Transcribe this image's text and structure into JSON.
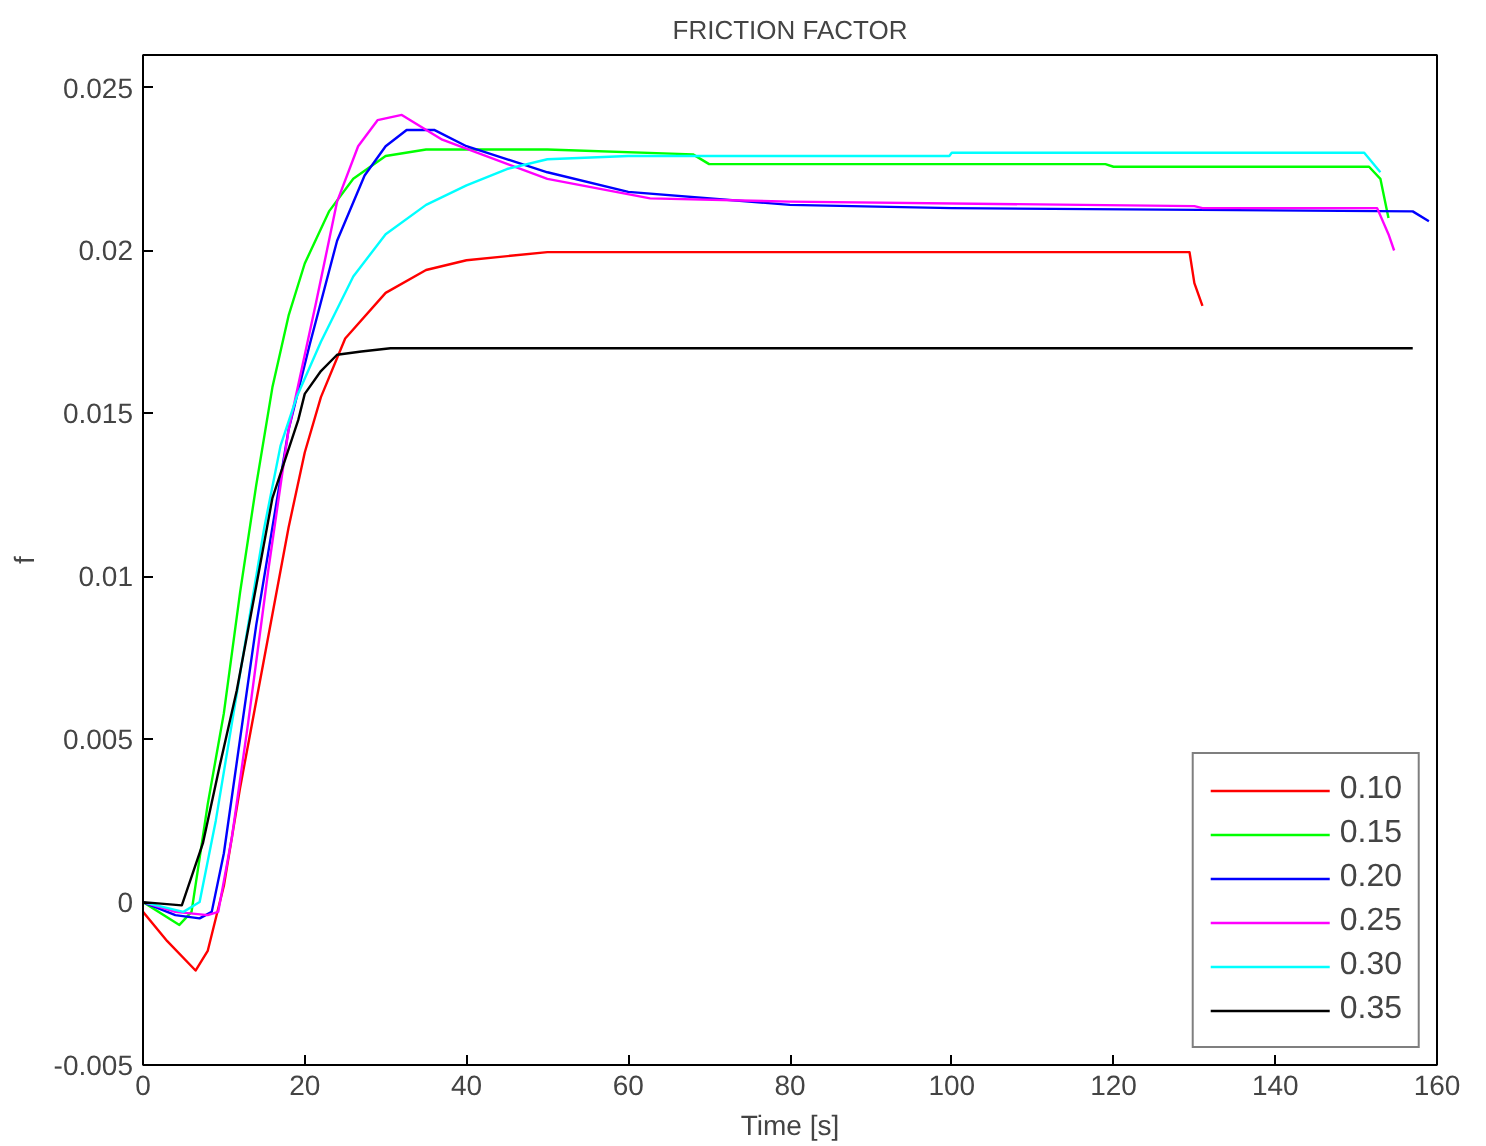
{
  "chart_data": {
    "type": "line",
    "title": "FRICTION FACTOR",
    "xlabel": "Time [s]",
    "ylabel": "f",
    "xlim": [
      0,
      160
    ],
    "ylim": [
      -0.005,
      0.026
    ],
    "xticks": [
      0,
      20,
      40,
      60,
      80,
      100,
      120,
      140,
      160
    ],
    "yticks": [
      -0.005,
      0,
      0.005,
      0.01,
      0.015,
      0.02,
      0.025
    ],
    "grid": false,
    "legend": "bottom right",
    "marker": "none",
    "line_style": "solid",
    "series": [
      {
        "name": "0.10",
        "color": "#ff0000",
        "x": [
          0,
          3,
          6.5,
          8,
          10,
          12,
          15,
          18,
          20,
          22,
          25,
          30,
          35,
          40,
          50,
          129.4,
          130,
          131
        ],
        "values": [
          -0.0003,
          -0.0012,
          -0.0021,
          -0.0015,
          0.0005,
          0.0035,
          0.0075,
          0.0115,
          0.0138,
          0.0155,
          0.0173,
          0.0187,
          0.0194,
          0.0197,
          0.01995,
          0.01995,
          0.019,
          0.0183
        ]
      },
      {
        "name": "0.15",
        "color": "#00ff00",
        "x": [
          0,
          4.5,
          6,
          8,
          10,
          12,
          14,
          16,
          18,
          20,
          23,
          26,
          30,
          35,
          50,
          68,
          70,
          119,
          120,
          151.6,
          153,
          154
        ],
        "values": [
          0,
          -0.0007,
          -0.0003,
          0.003,
          0.0058,
          0.0095,
          0.0128,
          0.0158,
          0.018,
          0.0196,
          0.0212,
          0.0222,
          0.0229,
          0.0231,
          0.0231,
          0.02295,
          0.02265,
          0.02265,
          0.02257,
          0.02257,
          0.0222,
          0.021
        ]
      },
      {
        "name": "0.20",
        "color": "#0000ff",
        "x": [
          0,
          4,
          7,
          8.5,
          10,
          12,
          14,
          16,
          18,
          20.6,
          24,
          27.4,
          30,
          32.6,
          36,
          40,
          50,
          60,
          80,
          100,
          157,
          159
        ],
        "values": [
          0,
          -0.0004,
          -0.0005,
          -0.0003,
          0.0015,
          0.005,
          0.0085,
          0.0115,
          0.0145,
          0.0171,
          0.0203,
          0.0223,
          0.0232,
          0.0237,
          0.0237,
          0.0232,
          0.0224,
          0.0218,
          0.0214,
          0.0213,
          0.0212,
          0.0209
        ]
      },
      {
        "name": "0.25",
        "color": "#ff00ff",
        "x": [
          0,
          4,
          8,
          9.3,
          11,
          13,
          15.5,
          18,
          21.4,
          24,
          26.6,
          29,
          32,
          37,
          50,
          62.7,
          80,
          130,
          131,
          152.6,
          154,
          154.7
        ],
        "values": [
          0,
          -0.0003,
          -0.0004,
          -0.0003,
          0.002,
          0.0055,
          0.0102,
          0.0145,
          0.0184,
          0.0215,
          0.0232,
          0.024,
          0.02416,
          0.0234,
          0.0222,
          0.0216,
          0.0215,
          0.02136,
          0.0213,
          0.0213,
          0.0205,
          0.02
        ]
      },
      {
        "name": "0.30",
        "color": "#00ffff",
        "x": [
          0,
          5,
          7,
          9,
          11,
          13,
          15,
          17,
          19,
          22,
          26,
          30,
          35,
          40,
          45,
          50,
          60,
          99.7,
          100,
          151,
          153
        ],
        "values": [
          0,
          -0.0003,
          0,
          0.0025,
          0.0055,
          0.0085,
          0.0115,
          0.014,
          0.0155,
          0.0172,
          0.0192,
          0.0205,
          0.0214,
          0.022,
          0.0225,
          0.0228,
          0.0229,
          0.0229,
          0.023,
          0.023,
          0.0224
        ]
      },
      {
        "name": "0.35",
        "color": "#000000",
        "x": [
          0,
          4.8,
          7.4,
          9.5,
          11.6,
          14,
          16,
          19.2,
          20,
          22,
          24,
          27,
          30.6,
          157
        ],
        "values": [
          0,
          -0.0001,
          0.0018,
          0.0042,
          0.0065,
          0.0097,
          0.0124,
          0.0148,
          0.0156,
          0.0163,
          0.0168,
          0.0169,
          0.017,
          0.017
        ]
      }
    ]
  }
}
